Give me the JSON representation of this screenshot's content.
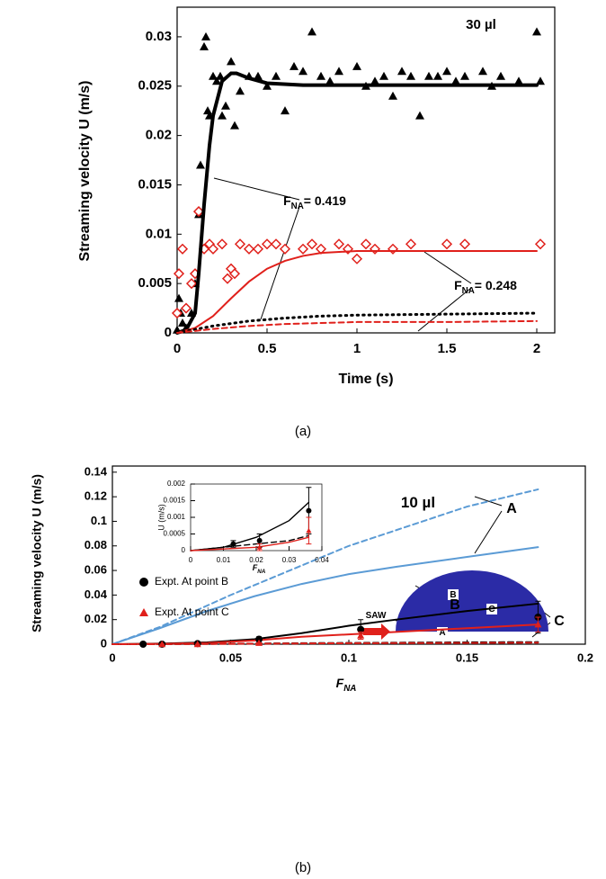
{
  "chart_data": [
    {
      "type": "scatter",
      "xlabel": "Time (s)",
      "ylabel": "Streaming velocity U (m/s)",
      "caption": "(a)",
      "xlim": [
        0,
        2.1
      ],
      "ylim": [
        0,
        0.033
      ],
      "xticks": [
        0,
        0.5,
        1,
        1.5,
        2
      ],
      "yticks": [
        0,
        0.005,
        0.01,
        0.015,
        0.02,
        0.025,
        0.03
      ],
      "grid": false,
      "annotations": [
        {
          "text": "30 µl"
        },
        {
          "text": "F",
          "sub": "NA",
          "rest": "= 0.419"
        },
        {
          "text": "F",
          "sub": "NA",
          "rest": "= 0.248"
        }
      ],
      "series": [
        {
          "style": "triangle",
          "color": "#000000",
          "x": [
            0,
            0.01,
            0.02,
            0.03,
            0.05,
            0.08,
            0.1,
            0.12,
            0.13,
            0.15,
            0.16,
            0.17,
            0.18,
            0.2,
            0.22,
            0.24,
            0.25,
            0.27,
            0.3,
            0.32,
            0.35,
            0.4,
            0.45,
            0.5,
            0.55,
            0.6,
            0.65,
            0.7,
            0.75,
            0.8,
            0.85,
            0.9,
            1.0,
            1.05,
            1.1,
            1.15,
            1.2,
            1.25,
            1.3,
            1.35,
            1.4,
            1.45,
            1.5,
            1.55,
            1.6,
            1.7,
            1.75,
            1.8,
            1.9,
            2.0,
            2.02
          ],
          "values": [
            0.0003,
            0.0035,
            0.002,
            0.001,
            0.0005,
            0.002,
            0.005,
            0.012,
            0.017,
            0.029,
            0.03,
            0.0225,
            0.022,
            0.026,
            0.0255,
            0.026,
            0.022,
            0.023,
            0.0275,
            0.021,
            0.0245,
            0.026,
            0.026,
            0.025,
            0.026,
            0.0225,
            0.027,
            0.0265,
            0.0305,
            0.026,
            0.0255,
            0.0265,
            0.027,
            0.025,
            0.0255,
            0.026,
            0.024,
            0.0265,
            0.026,
            0.022,
            0.026,
            0.026,
            0.0265,
            0.0255,
            0.026,
            0.0265,
            0.025,
            0.026,
            0.0255,
            0.0305,
            0.0255
          ]
        },
        {
          "style": "diamond",
          "color": "#e0201b",
          "x": [
            0,
            0.01,
            0.03,
            0.05,
            0.08,
            0.1,
            0.12,
            0.15,
            0.18,
            0.2,
            0.25,
            0.28,
            0.3,
            0.32,
            0.35,
            0.4,
            0.45,
            0.5,
            0.55,
            0.6,
            0.7,
            0.75,
            0.8,
            0.9,
            0.95,
            1.0,
            1.05,
            1.1,
            1.2,
            1.3,
            1.5,
            1.6,
            2.02
          ],
          "values": [
            0.002,
            0.006,
            0.0085,
            0.0025,
            0.005,
            0.006,
            0.0123,
            0.0085,
            0.009,
            0.0085,
            0.009,
            0.0055,
            0.0065,
            0.006,
            0.009,
            0.0085,
            0.0085,
            0.009,
            0.009,
            0.0085,
            0.0085,
            0.009,
            0.0085,
            0.009,
            0.0085,
            0.0075,
            0.009,
            0.0085,
            0.0085,
            0.009,
            0.009,
            0.009,
            0.009
          ]
        },
        {
          "style": "thick",
          "color": "#000000",
          "x": [
            0,
            0.05,
            0.1,
            0.12,
            0.15,
            0.18,
            0.2,
            0.25,
            0.3,
            0.33,
            0.4,
            0.5,
            0.7,
            1,
            1.5,
            2
          ],
          "values": [
            0,
            0.0003,
            0.002,
            0.006,
            0.013,
            0.019,
            0.022,
            0.0255,
            0.0263,
            0.0263,
            0.0258,
            0.0253,
            0.0251,
            0.0251,
            0.0251,
            0.0251
          ]
        },
        {
          "style": "solid",
          "color": "#e0201b",
          "x": [
            0,
            0.1,
            0.2,
            0.3,
            0.4,
            0.5,
            0.6,
            0.7,
            0.8,
            1,
            1.5,
            2
          ],
          "values": [
            0,
            0.0005,
            0.0017,
            0.0035,
            0.0052,
            0.0065,
            0.0073,
            0.0078,
            0.0081,
            0.0083,
            0.0083,
            0.0083
          ]
        },
        {
          "style": "dotted",
          "color": "#000000",
          "x": [
            0,
            0.2,
            0.4,
            0.6,
            0.8,
            1,
            1.5,
            2
          ],
          "values": [
            0,
            0.0007,
            0.0012,
            0.0015,
            0.0017,
            0.0018,
            0.0019,
            0.002
          ]
        },
        {
          "style": "dashed",
          "color": "#e0201b",
          "x": [
            0,
            0.2,
            0.4,
            0.6,
            0.8,
            1,
            1.5,
            2
          ],
          "values": [
            0,
            0.0004,
            0.0007,
            0.0009,
            0.001,
            0.0011,
            0.0011,
            0.0012
          ]
        }
      ]
    },
    {
      "type": "scatter",
      "xlabel": {
        "text": "F",
        "sub": "NA"
      },
      "ylabel": "Streaming velocity U (m/s)",
      "caption": "(b)",
      "xlim": [
        0,
        0.2
      ],
      "ylim": [
        0,
        0.145
      ],
      "xticks": [
        0,
        0.05,
        0.1,
        0.15,
        0.2
      ],
      "yticks": [
        0,
        0.02,
        0.04,
        0.06,
        0.08,
        0.1,
        0.12,
        0.14
      ],
      "grid": false,
      "legend": "left",
      "annotations": [
        {
          "text": "10 µl"
        },
        {
          "text": "A"
        },
        {
          "text": "B"
        },
        {
          "text": "C"
        },
        {
          "text": "SAW"
        },
        {
          "text": "A"
        },
        {
          "text": "B"
        },
        {
          "text": "C"
        }
      ],
      "series": [
        {
          "style": "dashed",
          "color": "#5b9bd5",
          "x": [
            0,
            0.02,
            0.05,
            0.1,
            0.15,
            0.18
          ],
          "values": [
            0,
            0.014,
            0.04,
            0.08,
            0.112,
            0.126
          ]
        },
        {
          "style": "solid",
          "color": "#5b9bd5",
          "x": [
            0,
            0.02,
            0.04,
            0.06,
            0.08,
            0.1,
            0.12,
            0.15,
            0.18
          ],
          "values": [
            0,
            0.013,
            0.027,
            0.039,
            0.049,
            0.057,
            0.063,
            0.071,
            0.079
          ]
        },
        {
          "style": "solid",
          "color": "#000000",
          "x": [
            0,
            0.02,
            0.04,
            0.06,
            0.08,
            0.1,
            0.12,
            0.15,
            0.18
          ],
          "values": [
            0,
            0.0005,
            0.0015,
            0.004,
            0.009,
            0.015,
            0.02,
            0.027,
            0.033
          ]
        },
        {
          "style": "solid",
          "color": "#e0201b",
          "x": [
            0,
            0.02,
            0.04,
            0.06,
            0.08,
            0.1,
            0.12,
            0.15,
            0.18
          ],
          "values": [
            0,
            0.0003,
            0.001,
            0.003,
            0.006,
            0.008,
            0.01,
            0.013,
            0.016
          ]
        },
        {
          "style": "dashed",
          "color": "#000000",
          "x": [
            0,
            0.02,
            0.04,
            0.06,
            0.08,
            0.1,
            0.12,
            0.15,
            0.18
          ],
          "values": [
            0,
            0,
            0.0003,
            0.0005,
            0.0008,
            0.001,
            0.0012,
            0.0015,
            0.0017
          ]
        },
        {
          "style": "dashed",
          "color": "#e0201b",
          "x": [
            0,
            0.02,
            0.04,
            0.06,
            0.08,
            0.1,
            0.12,
            0.15,
            0.18
          ],
          "values": [
            0,
            0,
            0.0002,
            0.0004,
            0.0006,
            0.0008,
            0.0009,
            0.001,
            0.0012
          ]
        },
        {
          "style": "circle",
          "color": "#000000",
          "name": "Expt. At point B",
          "x": [
            0.013,
            0.021,
            0.036,
            0.062,
            0.105,
            0.18
          ],
          "values": [
            0,
            0,
            0.0005,
            0.004,
            0.012,
            0.022
          ],
          "errors": [
            0,
            0,
            0,
            0.002,
            0.008,
            0.013
          ]
        },
        {
          "style": "triangle",
          "color": "#e0201b",
          "name": "Expt. At point C",
          "x": [
            0.021,
            0.036,
            0.062,
            0.105,
            0.18
          ],
          "values": [
            0,
            0,
            0.001,
            0.007,
            0.016
          ],
          "errors": [
            0,
            0,
            0,
            0.003,
            0.006
          ]
        }
      ]
    },
    {
      "type": "scatter",
      "xlabel": {
        "text": "F",
        "sub": "NA"
      },
      "ylabel": "U (m/s)",
      "xlim": [
        0,
        0.04
      ],
      "ylim": [
        0,
        0.002
      ],
      "xticks": [
        0,
        0.01,
        0.02,
        0.03,
        0.04
      ],
      "yticks": [
        0,
        0.0005,
        0.001,
        0.0015,
        0.002
      ],
      "grid": false,
      "series": [
        {
          "style": "solid",
          "color": "#000000",
          "x": [
            0,
            0.01,
            0.02,
            0.03,
            0.036
          ],
          "values": [
            0,
            0.0001,
            0.0004,
            0.0009,
            0.00145
          ]
        },
        {
          "style": "dashed",
          "color": "#000000",
          "x": [
            0,
            0.01,
            0.02,
            0.03,
            0.036
          ],
          "values": [
            0,
            0.0001,
            0.0002,
            0.0003,
            0.00045
          ]
        },
        {
          "style": "solid",
          "color": "#e0201b",
          "x": [
            0,
            0.01,
            0.02,
            0.03,
            0.036
          ],
          "values": [
            0,
            5e-05,
            0.0001,
            0.00025,
            0.0004
          ]
        },
        {
          "style": "circle",
          "color": "#000000",
          "x": [
            0.013,
            0.021,
            0.036
          ],
          "values": [
            0.0002,
            0.0003,
            0.0012
          ],
          "errors": [
            0.0001,
            0.0002,
            0.0007
          ]
        },
        {
          "style": "triangle",
          "color": "#e0201b",
          "x": [
            0.021,
            0.036
          ],
          "values": [
            0.0001,
            0.0006
          ],
          "errors": [
            0.0001,
            0.0004
          ]
        }
      ]
    }
  ]
}
